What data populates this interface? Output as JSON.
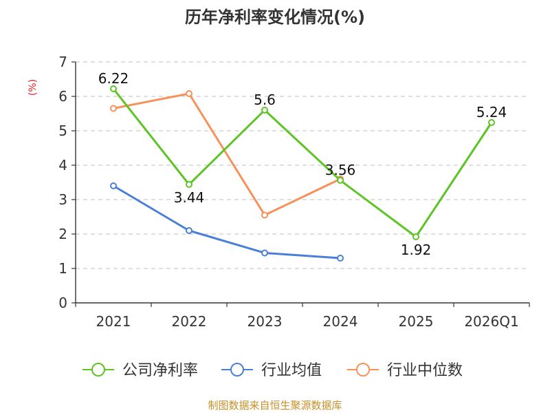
{
  "chart_data": {
    "type": "line",
    "title": "历年净利率变化情况(%)",
    "ylabel": "(%)",
    "ylim": [
      0,
      7
    ],
    "yticks": [
      0,
      1,
      2,
      3,
      4,
      5,
      6,
      7
    ],
    "categories": [
      "2021",
      "2022",
      "2023",
      "2024",
      "2025",
      "2026Q1"
    ],
    "grid": true,
    "legend_position": "bottom",
    "series": [
      {
        "name": "公司净利率",
        "color": "#5cc423",
        "values": [
          6.22,
          3.44,
          5.6,
          3.56,
          1.92,
          5.24
        ],
        "labels": [
          "6.22",
          "3.44",
          "5.6",
          "3.56",
          "1.92",
          "5.24"
        ],
        "label_positions": [
          "above",
          "below",
          "above",
          "above",
          "below",
          "above"
        ]
      },
      {
        "name": "行业均值",
        "color": "#4a7fd8",
        "values": [
          3.4,
          2.1,
          1.45,
          1.3,
          null,
          null
        ]
      },
      {
        "name": "行业中位数",
        "color": "#f8905a",
        "values": [
          5.65,
          6.08,
          2.55,
          3.6,
          null,
          null
        ]
      }
    ]
  },
  "source_note": "制图数据来自恒生聚源数据库"
}
